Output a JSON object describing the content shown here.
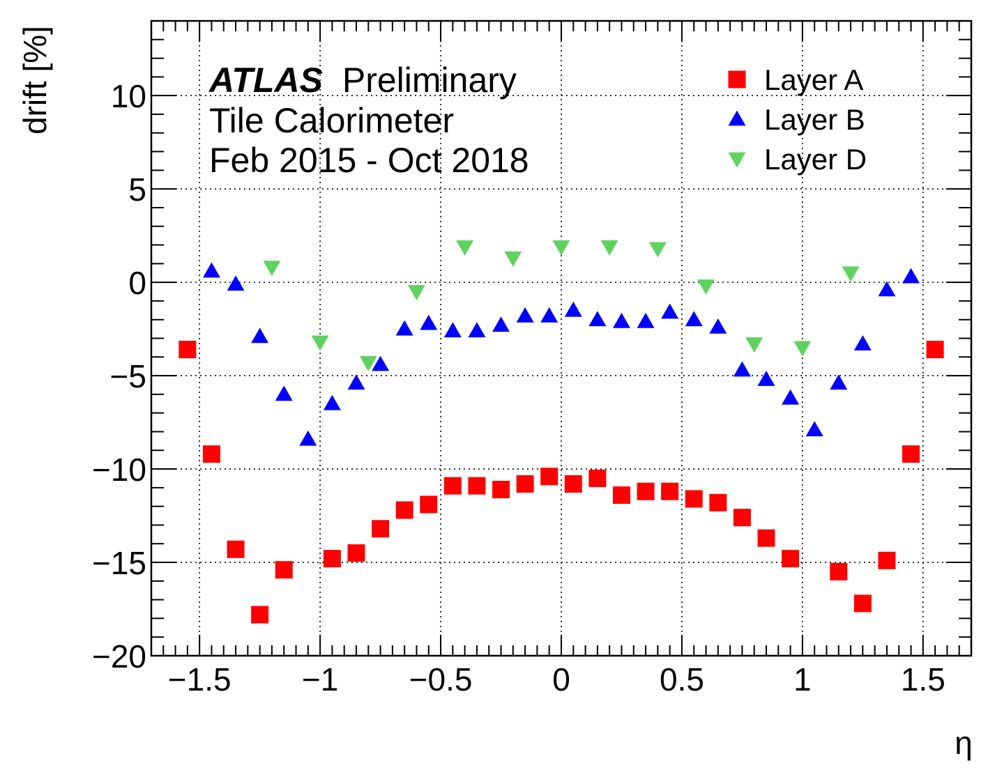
{
  "chart_data": {
    "type": "scatter",
    "xlabel": "η",
    "ylabel": "drift [%]",
    "xlim": [
      -1.7,
      1.7
    ],
    "ylim": [
      -20,
      14
    ],
    "xticks": [
      -1.5,
      -1,
      -0.5,
      0,
      0.5,
      1,
      1.5
    ],
    "xtick_labels": [
      "−1.5",
      "−1",
      "−0.5",
      "0",
      "0.5",
      "1",
      "1.5"
    ],
    "yticks": [
      -20,
      -15,
      -10,
      -5,
      0,
      5,
      10
    ],
    "ytick_labels": [
      "−20",
      "−15",
      "−10",
      "−5",
      "0",
      "5",
      "10"
    ],
    "grid": true,
    "legend_position": "top-right",
    "annotations": {
      "experiment": "ATLAS",
      "status": "Preliminary",
      "detector": "Tile Calorimeter",
      "period": "Feb 2015 - Oct 2018"
    },
    "series": [
      {
        "name": "Layer A",
        "marker": "square",
        "color": "#ff0000",
        "x": [
          -1.55,
          -1.45,
          -1.35,
          -1.25,
          -1.15,
          -0.95,
          -0.85,
          -0.75,
          -0.65,
          -0.55,
          -0.45,
          -0.35,
          -0.25,
          -0.15,
          -0.05,
          0.05,
          0.15,
          0.25,
          0.35,
          0.45,
          0.55,
          0.65,
          0.75,
          0.85,
          0.95,
          1.15,
          1.25,
          1.35,
          1.45,
          1.55
        ],
        "y": [
          -3.6,
          -9.2,
          -14.3,
          -17.8,
          -15.4,
          -14.8,
          -14.5,
          -13.2,
          -12.2,
          -11.9,
          -10.9,
          -10.9,
          -11.1,
          -10.8,
          -10.4,
          -10.8,
          -10.5,
          -11.4,
          -11.2,
          -11.2,
          -11.6,
          -11.8,
          -12.6,
          -13.7,
          -14.8,
          -15.5,
          -17.2,
          -14.9,
          -9.2,
          -3.6
        ]
      },
      {
        "name": "Layer B",
        "marker": "triangle-up",
        "color": "#0000ff",
        "x": [
          -1.45,
          -1.35,
          -1.25,
          -1.15,
          -1.05,
          -0.95,
          -0.85,
          -0.75,
          -0.65,
          -0.55,
          -0.45,
          -0.35,
          -0.25,
          -0.15,
          -0.05,
          0.05,
          0.15,
          0.25,
          0.35,
          0.45,
          0.55,
          0.65,
          0.75,
          0.85,
          0.95,
          1.05,
          1.15,
          1.25,
          1.35,
          1.45
        ],
        "y": [
          0.6,
          -0.1,
          -2.9,
          -6.0,
          -8.4,
          -6.5,
          -5.4,
          -4.4,
          -2.5,
          -2.2,
          -2.6,
          -2.6,
          -2.3,
          -1.8,
          -1.8,
          -1.5,
          -2.0,
          -2.1,
          -2.1,
          -1.6,
          -2.0,
          -2.4,
          -4.7,
          -5.2,
          -6.2,
          -7.9,
          -5.4,
          -3.3,
          -0.4,
          0.3
        ]
      },
      {
        "name": "Layer D",
        "marker": "triangle-down",
        "color": "#5fd35f",
        "x": [
          -1.2,
          -1.0,
          -0.8,
          -0.6,
          -0.4,
          -0.2,
          0.0,
          0.2,
          0.4,
          0.6,
          0.8,
          1.0,
          1.2
        ],
        "y": [
          0.8,
          -3.2,
          -4.3,
          -0.5,
          1.9,
          1.3,
          1.9,
          1.9,
          1.8,
          -0.2,
          -3.3,
          -3.5,
          0.5
        ]
      }
    ]
  }
}
